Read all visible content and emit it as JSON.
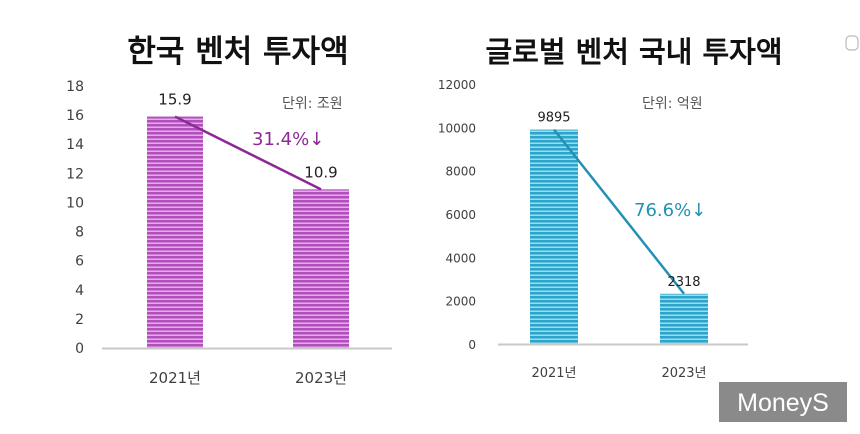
{
  "colors": {
    "bar_left": "#b24fbd",
    "bar_left_stripe": "#ecc6ef",
    "trend_left": "#8b2a95",
    "bar_right": "#2aa6cd",
    "bar_right_stripe": "#bfe6f3",
    "trend_right": "#2391b4",
    "axis": "#c8c8c8",
    "text": "#404040",
    "watermark_bg": "#8a8a8a"
  },
  "watermark": "MoneyS",
  "chart_data": [
    {
      "type": "bar",
      "title": "한국 벤처 투자액",
      "unit_label": "단위: 조원",
      "categories": [
        "2021년",
        "2023년"
      ],
      "values": [
        15.9,
        10.9
      ],
      "value_labels": [
        "15.9",
        "10.9"
      ],
      "yticks": [
        0,
        2,
        4,
        6,
        8,
        10,
        12,
        14,
        16,
        18
      ],
      "ylim": [
        0,
        18
      ],
      "change_annotation": "31.4%↓",
      "xlabel": "",
      "ylabel": ""
    },
    {
      "type": "bar",
      "title": "글로벌 벤처 국내 투자액",
      "unit_label": "단위: 억원",
      "categories": [
        "2021년",
        "2023년"
      ],
      "values": [
        9895,
        2318
      ],
      "value_labels": [
        "9895",
        "2318"
      ],
      "yticks": [
        0,
        2000,
        4000,
        6000,
        8000,
        10000,
        12000
      ],
      "ylim": [
        0,
        12000
      ],
      "change_annotation": "76.6%↓",
      "xlabel": "",
      "ylabel": ""
    }
  ]
}
